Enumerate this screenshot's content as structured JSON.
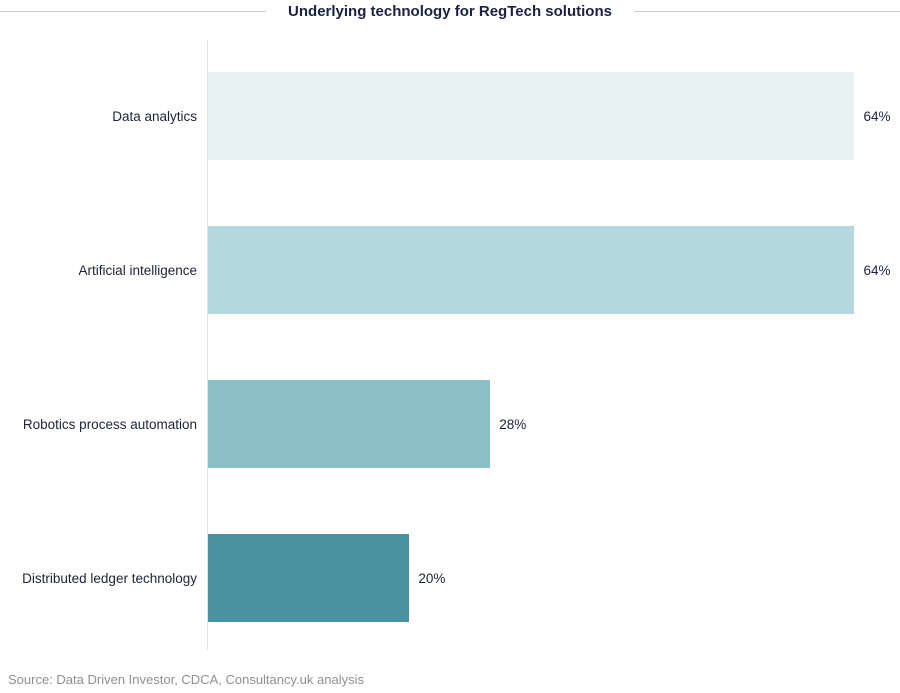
{
  "title": "Underlying technology for RegTech solutions",
  "source": "Source: Data Driven Investor, CDCA, Consultancy.uk analysis",
  "chart_data": {
    "type": "bar",
    "orientation": "horizontal",
    "title": "Underlying technology for RegTech solutions",
    "categories": [
      "Data analytics",
      "Artificial intelligence",
      "Robotics process automation",
      "Distributed ledger technology"
    ],
    "values": [
      64,
      64,
      28,
      20
    ],
    "value_labels": [
      "64%",
      "64%",
      "28%",
      "20%"
    ],
    "xlabel": "",
    "ylabel": "",
    "xlim": [
      0,
      68.5
    ],
    "grid": false,
    "legend": false,
    "bar_colors": [
      "#e9f2f2",
      "#b3d8dd",
      "#8abfc5",
      "#4b93a3"
    ],
    "title_color": "#1b2142",
    "label_color": "#1f2335",
    "axis_color": "#e3e3e3",
    "header_rule_color": "#c9c9c9",
    "source_color": "#8e9091"
  }
}
